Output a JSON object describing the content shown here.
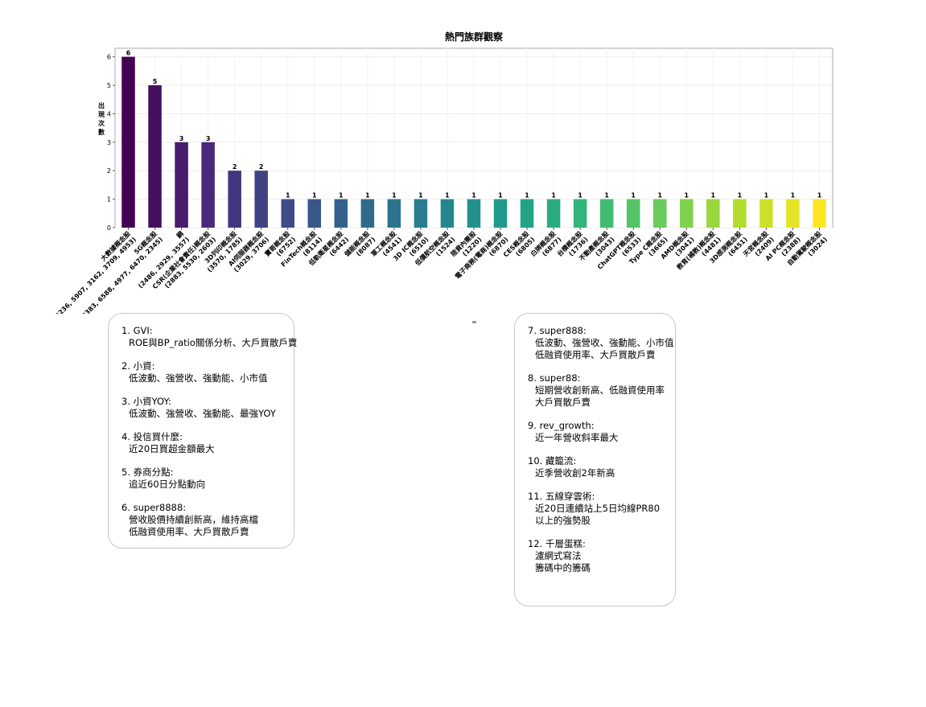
{
  "chart_data": {
    "type": "bar",
    "title": "熱門族群觀察",
    "xlabel": "",
    "ylabel": "出現次數",
    "ylim": [
      0,
      6.3
    ],
    "yticks": [
      0,
      1,
      2,
      3,
      4,
      5,
      6
    ],
    "grid": true,
    "categories": [
      "大數據概念股\n(4577, 2236, 5907, 3162, 3709, 4953)",
      "5G概念股\n(2383, 6588, 4977, 6470, 2345)",
      "鋼\n(2486, 2929, 3557)",
      "CSR(企業社會責任)概念股\n(2883, 5530, 2603)",
      "3D列印概念股\n(3570, 1785)",
      "AI伺服器概念股\n(3029, 3706)",
      "寶哥概念股\n(6752)",
      "FinTech概念股\n(8114)",
      "低軌衛星概念股\n(6442)",
      "儲能概念股\n(8087)",
      "軍工概念股\n(4541)",
      "3D IC概念股\n(6510)",
      "低價航空概念股\n(1524)",
      "陸資內需股\n(1220)",
      "電子商務(電商)概念股\n(6870)",
      "CES概念股\n(6805)",
      "白牌概念股\n(6877)",
      "台積概念股\n(1736)",
      "不動產概念股\n(3043)",
      "ChatGPT概念股\n(6533)",
      "Type C概念股\n(3665)",
      "AMD概念股\n(3041)",
      "教育(補教)概念股\n(4481)",
      "3D感測概念股\n(6451)",
      "天宮概念股\n(2409)",
      "AI PC概念股\n(2388)",
      "自動駕駛概念股\n(3024)"
    ],
    "values": [
      6,
      5,
      3,
      3,
      2,
      2,
      1,
      1,
      1,
      1,
      1,
      1,
      1,
      1,
      1,
      1,
      1,
      1,
      1,
      1,
      1,
      1,
      1,
      1,
      1,
      1,
      1
    ],
    "colormap": "viridis"
  },
  "strategies_left": [
    {
      "title": "1. GVI:",
      "desc": "ROE與BP_ratio關係分析、大戶買散戶賣"
    },
    {
      "title": "2. 小資:",
      "desc": "低波動、強營收、強動能、小市值"
    },
    {
      "title": "3. 小資YOY:",
      "desc": "低波動、強營收、強動能、最強YOY"
    },
    {
      "title": "4. 投信買什麼:",
      "desc": "近20日買超金額最大"
    },
    {
      "title": "5. 券商分點:",
      "desc": "追近60日分點動向"
    },
    {
      "title": "6. super8888:",
      "desc": "營收股價持續創新高，維持高檔\n低融資使用率、大戶買散戶賣"
    }
  ],
  "strategies_right": [
    {
      "title": "7. super888:",
      "desc": "低波動、強營收、強動能、小市值\n低融資使用率、大戶買散戶賣"
    },
    {
      "title": "8. super88:",
      "desc": "短期營收創新高、低融資使用率\n大戶買散戶賣"
    },
    {
      "title": "9. rev_growth:",
      "desc": "近一年營收斜率最大"
    },
    {
      "title": "10. 藏籠流:",
      "desc": "近季營收創2年新高"
    },
    {
      "title": "11. 五線穿雲術:",
      "desc": "近20日連續站上5日均線PR80\n以上的強勢股"
    },
    {
      "title": "12. 千層蛋糕:",
      "desc": "濾網式寫法\n籌碼中的籌碼"
    }
  ]
}
